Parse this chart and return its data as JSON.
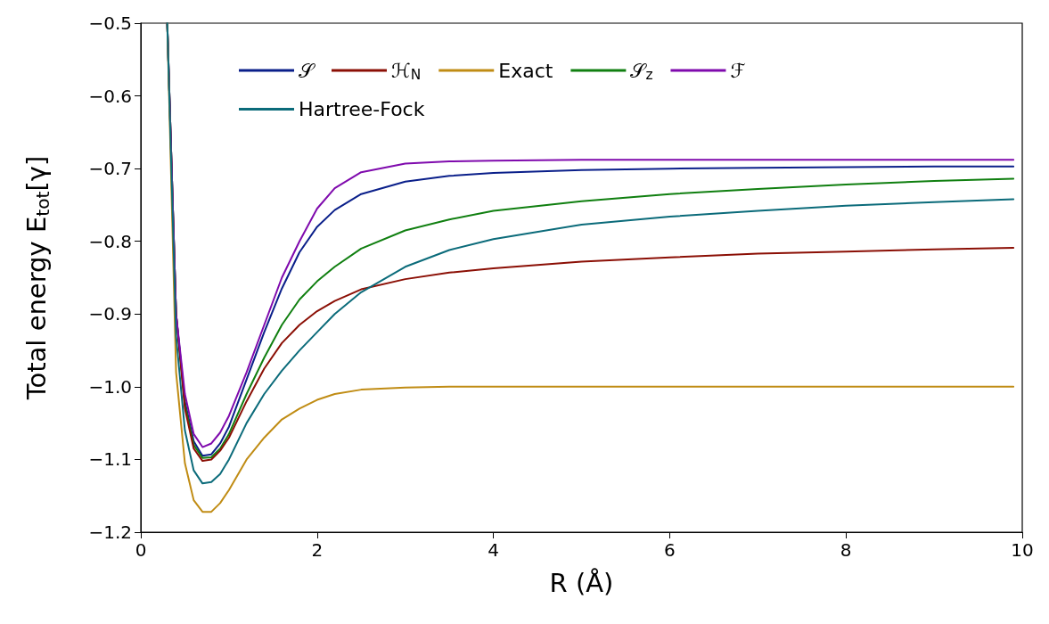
{
  "chart_data": {
    "type": "line",
    "xlabel": "R (Å)",
    "ylabel": "Total energy E$_{tot}$[γ]",
    "x": [
      0.3,
      0.4,
      0.5,
      0.6,
      0.7,
      0.8,
      0.9,
      1.0,
      1.2,
      1.4,
      1.6,
      1.8,
      2.0,
      2.2,
      2.5,
      3,
      3.5,
      4,
      5,
      6,
      7,
      8,
      9,
      9.9
    ],
    "series": [
      {
        "name": "𝒮",
        "color": "#0a1f8a",
        "values": [
          -0.5,
          -0.9,
          -1.02,
          -1.075,
          -1.095,
          -1.093,
          -1.078,
          -1.055,
          -0.99,
          -0.925,
          -0.865,
          -0.815,
          -0.78,
          -0.757,
          -0.735,
          -0.718,
          -0.71,
          -0.706,
          -0.702,
          -0.7,
          -0.699,
          -0.698,
          -0.697,
          -0.697
        ]
      },
      {
        "name": "𝒮$_{z}$",
        "color": "#107f10",
        "values": [
          -0.5,
          -0.9,
          -1.025,
          -1.08,
          -1.098,
          -1.097,
          -1.085,
          -1.065,
          -1.01,
          -0.96,
          -0.915,
          -0.88,
          -0.855,
          -0.835,
          -0.81,
          -0.785,
          -0.77,
          -0.758,
          -0.745,
          -0.735,
          -0.728,
          -0.722,
          -0.717,
          -0.714
        ]
      },
      {
        "name": "ℋ$_{N}$",
        "color": "#8b0f05",
        "values": [
          -0.5,
          -0.9,
          -1.03,
          -1.085,
          -1.102,
          -1.1,
          -1.088,
          -1.07,
          -1.02,
          -0.975,
          -0.94,
          -0.915,
          -0.896,
          -0.882,
          -0.866,
          -0.852,
          -0.843,
          -0.837,
          -0.828,
          -0.822,
          -0.817,
          -0.814,
          -0.811,
          -0.809
        ]
      },
      {
        "name": "ℱ",
        "color": "#7f0aad",
        "values": [
          -0.5,
          -0.9,
          -1.01,
          -1.065,
          -1.083,
          -1.078,
          -1.063,
          -1.04,
          -0.98,
          -0.915,
          -0.85,
          -0.8,
          -0.755,
          -0.727,
          -0.705,
          -0.693,
          -0.69,
          -0.689,
          -0.688,
          -0.688,
          -0.688,
          -0.688,
          -0.688,
          -0.688
        ]
      },
      {
        "name": "Exact",
        "color": "#c08c14",
        "values": [
          -0.5,
          -0.98,
          -1.105,
          -1.156,
          -1.172,
          -1.172,
          -1.16,
          -1.142,
          -1.1,
          -1.07,
          -1.045,
          -1.03,
          -1.018,
          -1.01,
          -1.004,
          -1.001,
          -1.0,
          -1.0,
          -1.0,
          -1.0,
          -1.0,
          -1.0,
          -1.0,
          -1.0
        ]
      },
      {
        "name": "Hartree-Fock",
        "color": "#0b6b7a",
        "values": [
          -0.5,
          -0.93,
          -1.06,
          -1.115,
          -1.133,
          -1.131,
          -1.12,
          -1.1,
          -1.05,
          -1.01,
          -0.978,
          -0.95,
          -0.925,
          -0.9,
          -0.87,
          -0.835,
          -0.812,
          -0.797,
          -0.777,
          -0.766,
          -0.758,
          -0.751,
          -0.746,
          -0.742
        ]
      }
    ],
    "xlim": [
      0,
      10
    ],
    "xticks": [
      0,
      2,
      4,
      6,
      8,
      10
    ],
    "ylim": [
      -1.2,
      -0.5
    ],
    "yticks": [
      {
        "value": -1.2,
        "label": "−1.2"
      },
      {
        "value": -1.1,
        "label": "−1.1"
      },
      {
        "value": -1.0,
        "label": "−1.0"
      },
      {
        "value": -0.9,
        "label": "−0.9"
      },
      {
        "value": -0.8,
        "label": "−0.8"
      },
      {
        "value": -0.7,
        "label": "−0.7"
      },
      {
        "value": -0.6,
        "label": "−0.6"
      },
      {
        "value": -0.5,
        "label": "−0.5"
      }
    ],
    "legend": "top",
    "marker": "none",
    "line_style": "solid",
    "grid": false
  }
}
